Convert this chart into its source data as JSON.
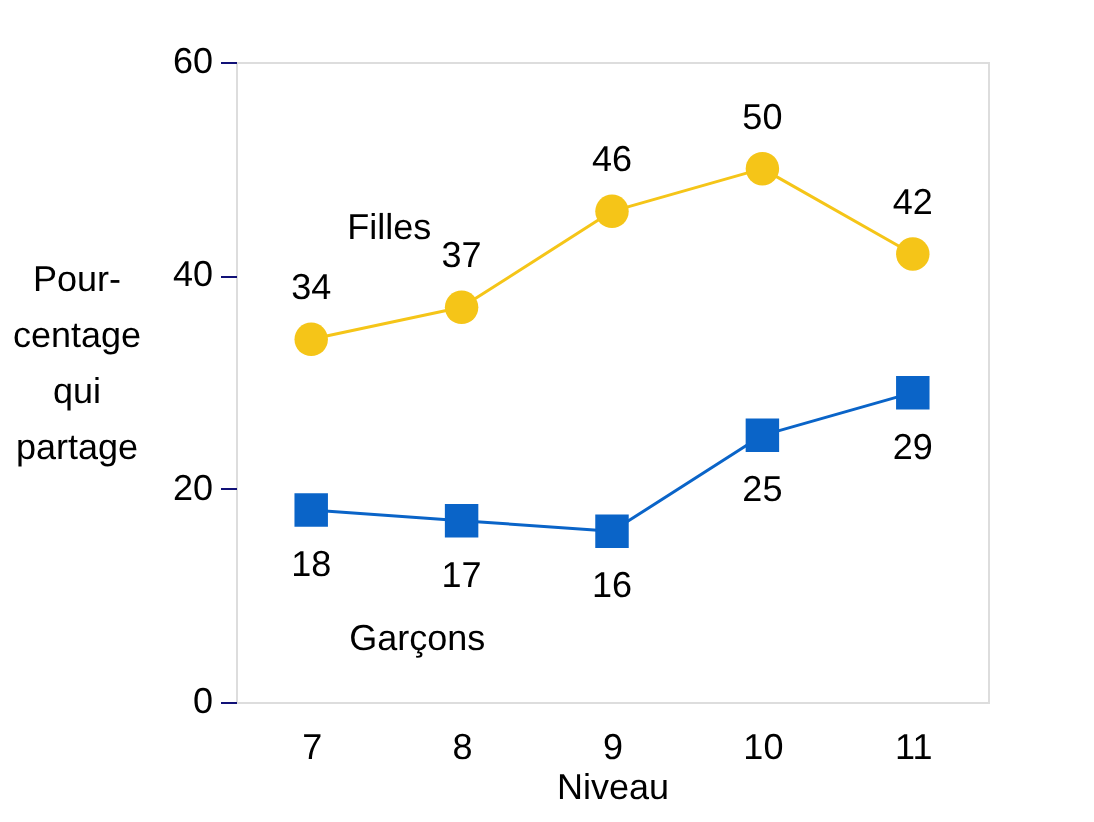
{
  "chart_data": {
    "type": "line",
    "xlabel": "Niveau",
    "ylabel": "Pour-\ncentage\nqui\npartage",
    "categories": [
      "7",
      "8",
      "9",
      "10",
      "11"
    ],
    "series": [
      {
        "name": "Filles",
        "color": "#f5c518",
        "marker": "circle",
        "values": [
          34,
          37,
          46,
          50,
          42
        ]
      },
      {
        "name": "Garçons",
        "color": "#0a64c8",
        "marker": "square",
        "values": [
          18,
          17,
          16,
          25,
          29
        ]
      }
    ],
    "ylim": [
      0,
      60
    ],
    "yticks": [
      0,
      20,
      40,
      60
    ],
    "grid": false,
    "legend": false,
    "data_labels": true
  }
}
